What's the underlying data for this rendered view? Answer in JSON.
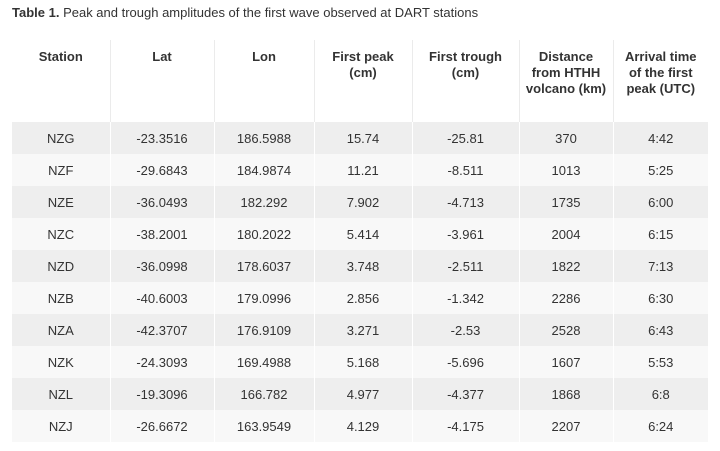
{
  "caption": {
    "label": "Table 1.",
    "text": " Peak and trough amplitudes of the first wave observed at DART stations"
  },
  "table": {
    "headers": [
      "Station",
      "Lat",
      "Lon",
      "First peak (cm)",
      "First trough (cm)",
      "Distance from HTHH volcano (km)",
      "Arrival time of the first peak (UTC)"
    ],
    "rows": [
      [
        "NZG",
        "-23.3516",
        "186.5988",
        "15.74",
        "-25.81",
        "370",
        "4:42"
      ],
      [
        "NZF",
        "-29.6843",
        "184.9874",
        "11.21",
        "-8.511",
        "1013",
        "5:25"
      ],
      [
        "NZE",
        "-36.0493",
        "182.292",
        "7.902",
        "-4.713",
        "1735",
        "6:00"
      ],
      [
        "NZC",
        "-38.2001",
        "180.2022",
        "5.414",
        "-3.961",
        "2004",
        "6:15"
      ],
      [
        "NZD",
        "-36.0998",
        "178.6037",
        "3.748",
        "-2.511",
        "1822",
        "7:13"
      ],
      [
        "NZB",
        "-40.6003",
        "179.0996",
        "2.856",
        "-1.342",
        "2286",
        "6:30"
      ],
      [
        "NZA",
        "-42.3707",
        "176.9109",
        "3.271",
        "-2.53",
        "2528",
        "6:43"
      ],
      [
        "NZK",
        "-24.3093",
        "169.4988",
        "5.168",
        "-5.696",
        "1607",
        "5:53"
      ],
      [
        "NZL",
        "-19.3096",
        "166.782",
        "4.977",
        "-4.377",
        "1868",
        "6:8"
      ],
      [
        "NZJ",
        "-26.6672",
        "163.9549",
        "4.129",
        "-4.175",
        "2207",
        "6:24"
      ]
    ]
  }
}
